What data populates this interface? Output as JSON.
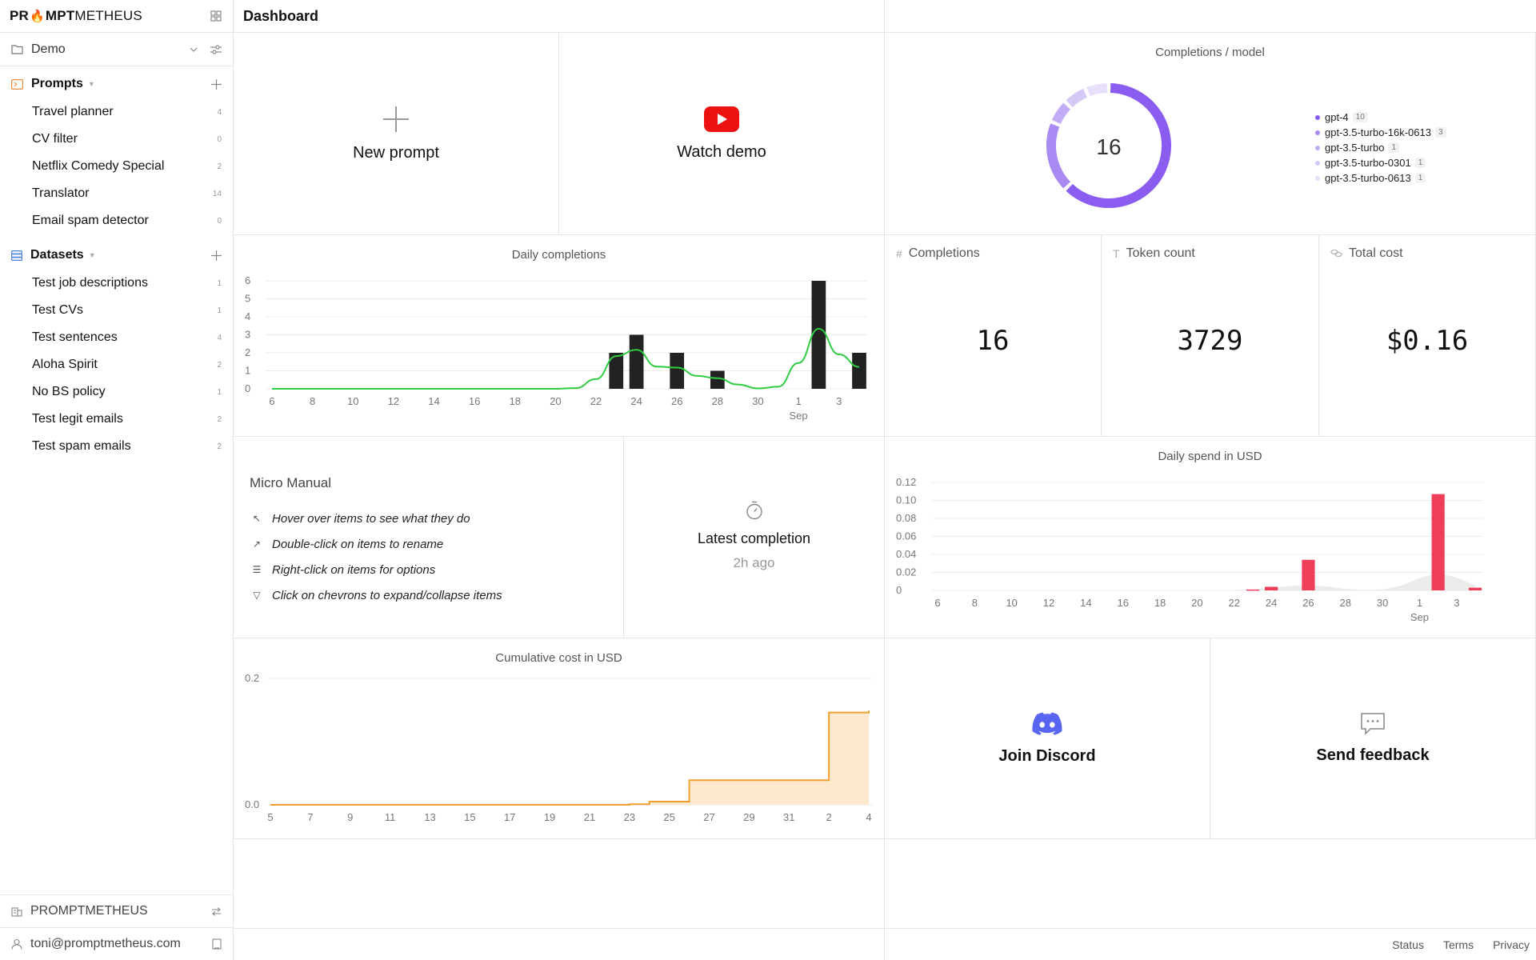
{
  "app": {
    "logo_bold_1": "PR",
    "logo_bold_2": "MPT",
    "logo_thin": "METHEUS"
  },
  "workspace": {
    "name": "Demo"
  },
  "prompts": {
    "title": "Prompts",
    "items": [
      {
        "label": "Travel planner",
        "count": "4"
      },
      {
        "label": "CV filter",
        "count": "0"
      },
      {
        "label": "Netflix Comedy Special",
        "count": "2"
      },
      {
        "label": "Translator",
        "count": "14"
      },
      {
        "label": "Email spam detector",
        "count": "0"
      }
    ]
  },
  "datasets": {
    "title": "Datasets",
    "items": [
      {
        "label": "Test job descriptions",
        "count": "1"
      },
      {
        "label": "Test CVs",
        "count": "1"
      },
      {
        "label": "Test sentences",
        "count": "4"
      },
      {
        "label": "Aloha Spirit",
        "count": "2"
      },
      {
        "label": "No BS policy",
        "count": "1"
      },
      {
        "label": "Test legit emails",
        "count": "2"
      },
      {
        "label": "Test spam emails",
        "count": "2"
      }
    ]
  },
  "sidebar_bottom": {
    "org": "PROMPTMETHEUS",
    "user": "toni@promptmetheus.com"
  },
  "header": {
    "title": "Dashboard"
  },
  "actions": {
    "new_prompt": "New prompt",
    "watch_demo": "Watch demo",
    "join_discord": "Join Discord",
    "send_feedback": "Send feedback"
  },
  "stats": {
    "completions_label": "Completions",
    "completions_value": "16",
    "tokens_label": "Token count",
    "tokens_value": "3729",
    "cost_label": "Total cost",
    "cost_value": "$0.16"
  },
  "manual": {
    "title": "Micro Manual",
    "items": [
      "Hover over items to see what they do",
      "Double-click on items to rename",
      "Right-click on items for options",
      "Click on chevrons to expand/collapse items"
    ]
  },
  "latest": {
    "label": "Latest completion",
    "ago": "2h ago"
  },
  "footer": {
    "status": "Status",
    "terms": "Terms",
    "privacy": "Privacy"
  },
  "colors": {
    "bars": "#222222",
    "line": "#2ecc40",
    "spend": "#ee3e5a",
    "cumulative": "#f0a030",
    "donut": "#8a5cf0",
    "youtube": "#ee1111",
    "discord": "#5865f2"
  },
  "chart_data": [
    {
      "type": "pie",
      "title": "Completions / model",
      "center_label": "16",
      "categories": [
        "gpt-4",
        "gpt-3.5-turbo-16k-0613",
        "gpt-3.5-turbo",
        "gpt-3.5-turbo-0301",
        "gpt-3.5-turbo-0613"
      ],
      "values": [
        10,
        3,
        1,
        1,
        1
      ],
      "colors": [
        "#8a5cf0",
        "#a98af3",
        "#c2acf7",
        "#d6c9f8",
        "#e8e0fb"
      ],
      "legend_position": "right"
    },
    {
      "type": "bar",
      "title": "Daily completions",
      "x_tick_labels": [
        "6",
        "8",
        "10",
        "12",
        "14",
        "16",
        "18",
        "20",
        "22",
        "24",
        "26",
        "28",
        "30",
        "1",
        "3"
      ],
      "x_sublabel": "Sep",
      "y_ticks": [
        "0",
        "1",
        "2",
        "3",
        "4",
        "5",
        "6"
      ],
      "ylim": [
        0,
        6
      ],
      "bars": [
        {
          "x": "23",
          "value": 2
        },
        {
          "x": "24",
          "value": 3
        },
        {
          "x": "26",
          "value": 2
        },
        {
          "x": "28",
          "value": 1
        },
        {
          "x": "2",
          "value": 6
        },
        {
          "x": "4",
          "value": 2
        }
      ],
      "trend_line": true,
      "grid": true
    },
    {
      "type": "bar",
      "title": "Daily spend in USD",
      "x_tick_labels": [
        "6",
        "8",
        "10",
        "12",
        "14",
        "16",
        "18",
        "20",
        "22",
        "24",
        "26",
        "28",
        "30",
        "1",
        "3"
      ],
      "x_sublabel": "Sep",
      "y_ticks": [
        "0",
        "0.02",
        "0.04",
        "0.06",
        "0.08",
        "0.10",
        "0.12"
      ],
      "ylim": [
        0,
        0.12
      ],
      "bars": [
        {
          "x": "23",
          "value": 0.001
        },
        {
          "x": "24",
          "value": 0.004
        },
        {
          "x": "26",
          "value": 0.034
        },
        {
          "x": "2",
          "value": 0.107
        },
        {
          "x": "4",
          "value": 0.003
        }
      ],
      "grid": true
    },
    {
      "type": "area",
      "title": "Cumulative cost in USD",
      "x_tick_labels": [
        "5",
        "7",
        "9",
        "11",
        "13",
        "15",
        "17",
        "19",
        "21",
        "23",
        "25",
        "27",
        "29",
        "31",
        "2",
        "4"
      ],
      "y_ticks": [
        "0.0",
        "0.2"
      ],
      "ylim": [
        0,
        0.2
      ],
      "step_points": [
        {
          "x": "5",
          "value": 0
        },
        {
          "x": "23",
          "value": 0.001
        },
        {
          "x": "24",
          "value": 0.005
        },
        {
          "x": "26",
          "value": 0.039
        },
        {
          "x": "2",
          "value": 0.146
        },
        {
          "x": "4",
          "value": 0.149
        }
      ],
      "grid": true
    }
  ]
}
